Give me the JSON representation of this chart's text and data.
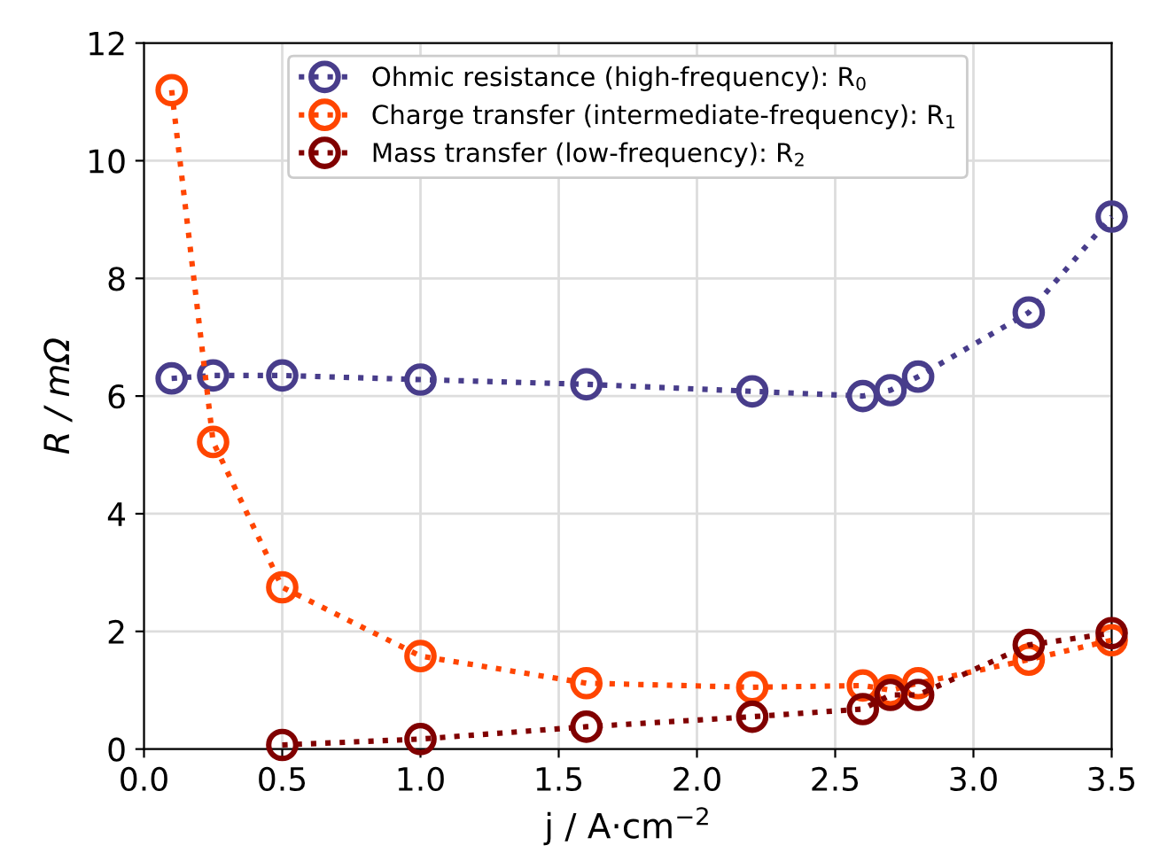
{
  "chart_data": {
    "type": "line",
    "xlabel": "j / A·cm$^{−2}$",
    "ylabel": "R / mΩ",
    "xlim": [
      0.0,
      3.5
    ],
    "xticks": [
      {
        "value": 0,
        "label": "0.0"
      },
      0.5,
      {
        "value": 1,
        "label": "1.0"
      },
      1.5,
      {
        "value": 2,
        "label": "2.0"
      },
      2.5,
      {
        "value": 3,
        "label": "3.0"
      },
      3.5
    ],
    "ylim": [
      0,
      12
    ],
    "yticks": [
      0,
      2,
      4,
      6,
      8,
      10,
      12
    ],
    "grid": true,
    "legend": "top",
    "marker": "circle",
    "line_style": "dotted",
    "series": [
      {
        "name": "Ohmic resistance (high-frequency): R$_{0}$",
        "color": "#483d8b",
        "x": [
          0.1,
          0.25,
          0.5,
          1.0,
          1.6,
          2.2,
          2.6,
          2.7,
          2.8,
          3.2,
          3.5
        ],
        "values": [
          6.3,
          6.35,
          6.35,
          6.28,
          6.2,
          6.08,
          6.0,
          6.1,
          6.33,
          7.42,
          9.05
        ]
      },
      {
        "name": "Charge transfer (intermediate-frequency): R$_{1}$",
        "color": "#ff4500",
        "x": [
          0.1,
          0.25,
          0.5,
          1.0,
          1.6,
          2.2,
          2.6,
          2.7,
          2.8,
          3.2,
          3.5
        ],
        "values": [
          11.2,
          5.22,
          2.75,
          1.58,
          1.12,
          1.05,
          1.08,
          1.0,
          1.12,
          1.52,
          1.85
        ]
      },
      {
        "name": "Mass transfer (low-frequency): R$_{2}$",
        "color": "#800000",
        "x": [
          0.5,
          1.0,
          1.6,
          2.2,
          2.6,
          2.7,
          2.8,
          3.2,
          3.5
        ],
        "values": [
          0.07,
          0.17,
          0.38,
          0.55,
          0.68,
          0.92,
          0.92,
          1.77,
          1.97
        ]
      }
    ]
  }
}
